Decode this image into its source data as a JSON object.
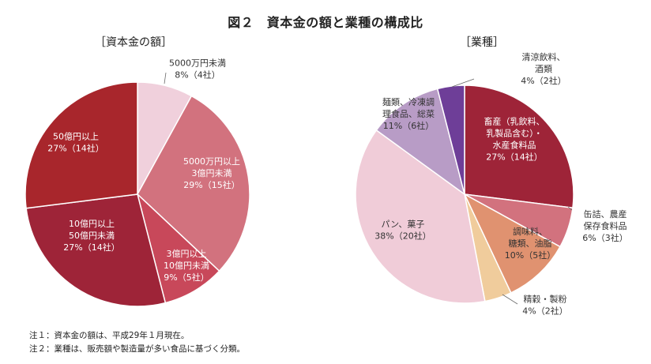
{
  "title": "図２　資本金の額と業種の構成比",
  "notes": [
    "注１：資本金の額は、平成29年１月現在。",
    "注２：業種は、販売額や製造量が多い食品に基づく分類。"
  ],
  "chart_data": [
    {
      "type": "pie",
      "title": "［資本金の額］",
      "slices": [
        {
          "name": "5000万円未満",
          "value": 8,
          "count": "4社",
          "label_lines": [
            "5000万円未満",
            "8%（4社）"
          ],
          "color": "#f0d0dc",
          "text_color": "#333333"
        },
        {
          "name": "5000万円以上3億円未満",
          "value": 29,
          "count": "15社",
          "label_lines": [
            "5000万円以上",
            "3億円未満",
            "29%（15社）"
          ],
          "color": "#d2727e",
          "text_color": "#ffffff"
        },
        {
          "name": "3億円以上10億円未満",
          "value": 9,
          "count": "5社",
          "label_lines": [
            "3億円以上",
            "10億円未満",
            "9%（5社）"
          ],
          "color": "#c8485a",
          "text_color": "#ffffff"
        },
        {
          "name": "10億円以上50億円未満",
          "value": 27,
          "count": "14社",
          "label_lines": [
            "10億円以上",
            "50億円未満",
            "27%（14社）"
          ],
          "color": "#9e2438",
          "text_color": "#ffffff"
        },
        {
          "name": "50億円以上",
          "value": 27,
          "count": "14社",
          "label_lines": [
            "50億円以上",
            "27%（14社）"
          ],
          "color": "#a8262c",
          "text_color": "#ffffff"
        }
      ]
    },
    {
      "type": "pie",
      "title": "［業種］",
      "slices": [
        {
          "name": "畜産（乳飲料、乳製品含む）・水産食料品",
          "value": 27,
          "count": "14社",
          "label_lines": [
            "畜産（乳飲料、",
            "乳製品含む）・",
            "水産食料品",
            "27%（14社）"
          ],
          "color": "#9e2438",
          "text_color": "#ffffff"
        },
        {
          "name": "缶詰、農産保存食料品",
          "value": 6,
          "count": "3社",
          "label_lines": [
            "缶詰、農産",
            "保存食料品",
            "6%（3社）"
          ],
          "color": "#d2727e",
          "text_color": "#333333"
        },
        {
          "name": "調味料、糖類、油脂",
          "value": 10,
          "count": "5社",
          "label_lines": [
            "調味料、",
            "糖類、油脂",
            "10%（5社）"
          ],
          "color": "#e09270",
          "text_color": "#333333"
        },
        {
          "name": "精穀・製粉",
          "value": 4,
          "count": "2社",
          "label_lines": [
            "精穀・製粉",
            "4%（2社）"
          ],
          "color": "#f0cc9c",
          "text_color": "#333333"
        },
        {
          "name": "パン、菓子",
          "value": 38,
          "count": "20社",
          "label_lines": [
            "パン、菓子",
            "38%（20社）"
          ],
          "color": "#f0ccd8",
          "text_color": "#333333"
        },
        {
          "name": "麺類、冷凍調理食品、総菜",
          "value": 11,
          "count": "6社",
          "label_lines": [
            "麺類、冷凍調",
            "理食品、総菜",
            "11%（6社）"
          ],
          "color": "#b89cc6",
          "text_color": "#333333"
        },
        {
          "name": "清涼飲料、酒類",
          "value": 4,
          "count": "2社",
          "label_lines": [
            "清涼飲料、",
            "酒類",
            "4%（2社）"
          ],
          "color": "#6e3e98",
          "text_color": "#333333"
        }
      ]
    }
  ]
}
